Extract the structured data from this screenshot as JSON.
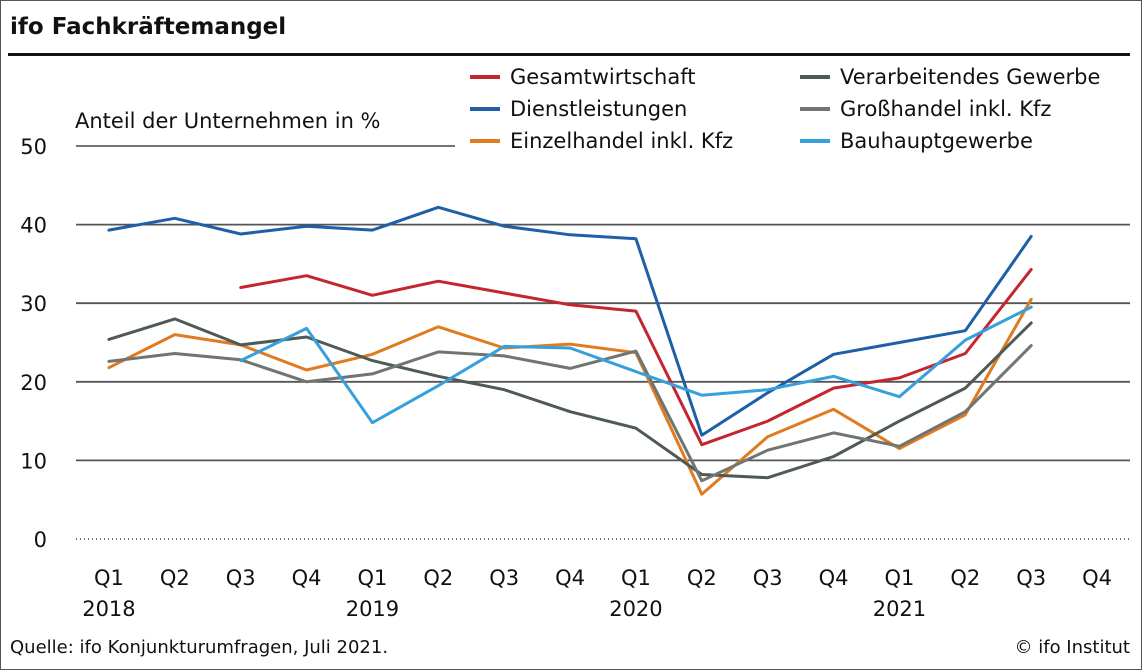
{
  "header": {
    "title": "ifo Fachkräftemangel"
  },
  "footer": {
    "source": "Quelle: ifo Konjunkturumfragen, Juli 2021.",
    "copyright": "© ifo Institut"
  },
  "chart_data": {
    "type": "line",
    "title": "ifo Fachkräftemangel",
    "ylabel": "Anteil der Unternehmen in %",
    "xlabel": "",
    "ylim": [
      0,
      50
    ],
    "yticks": [
      "0",
      "10",
      "20",
      "30",
      "40",
      "50"
    ],
    "grid": true,
    "legend_position": "top-right",
    "categories": [
      "Q1",
      "Q2",
      "Q3",
      "Q4",
      "Q1",
      "Q2",
      "Q3",
      "Q4",
      "Q1",
      "Q2",
      "Q3",
      "Q4",
      "Q1",
      "Q2",
      "Q3",
      "Q4"
    ],
    "years": [
      {
        "label": "2018",
        "index": 0
      },
      {
        "label": "2019",
        "index": 4
      },
      {
        "label": "2020",
        "index": 8
      },
      {
        "label": "2021",
        "index": 12
      }
    ],
    "series": [
      {
        "name": "Gesamtwirtschaft",
        "color": "#c4262e",
        "values": [
          null,
          null,
          32.0,
          33.5,
          31.0,
          32.8,
          31.3,
          29.8,
          29.0,
          12.0,
          15.0,
          19.2,
          20.5,
          23.6,
          34.3,
          null
        ]
      },
      {
        "name": "Dienstleistungen",
        "color": "#1f5fa6",
        "values": [
          39.3,
          40.8,
          38.8,
          39.8,
          39.3,
          42.2,
          39.8,
          38.7,
          38.2,
          13.2,
          18.6,
          23.5,
          25.0,
          26.5,
          38.5,
          null
        ]
      },
      {
        "name": "Einzelhandel inkl. Kfz",
        "color": "#e07b1f",
        "values": [
          21.8,
          26.0,
          24.7,
          21.5,
          23.5,
          27.0,
          24.3,
          24.8,
          23.7,
          5.7,
          13.0,
          16.5,
          11.5,
          15.8,
          30.5,
          null
        ]
      },
      {
        "name": "Verarbeitendes Gewerbe",
        "color": "#4f5a55",
        "values": [
          25.4,
          28.0,
          24.7,
          25.7,
          22.7,
          20.7,
          19.0,
          16.2,
          14.1,
          8.2,
          7.8,
          10.5,
          15.0,
          19.2,
          27.5,
          null
        ]
      },
      {
        "name": "Großhandel inkl. Kfz",
        "color": "#6f7571",
        "values": [
          22.6,
          23.6,
          22.8,
          20.0,
          21.0,
          23.8,
          23.3,
          21.7,
          23.9,
          7.4,
          11.3,
          13.5,
          11.8,
          16.2,
          24.6,
          null
        ]
      },
      {
        "name": "Bauhauptgewerbe",
        "color": "#35a0dc",
        "values": [
          null,
          null,
          22.7,
          26.8,
          14.8,
          19.5,
          24.5,
          24.3,
          21.3,
          18.3,
          19.0,
          20.7,
          18.1,
          25.3,
          29.5,
          null
        ]
      }
    ]
  }
}
